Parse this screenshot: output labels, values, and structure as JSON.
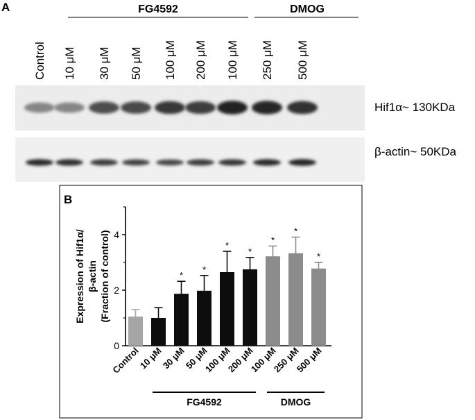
{
  "panel_a": {
    "label": "A",
    "groups": [
      "FG4592",
      "DMOG"
    ],
    "lane_labels": [
      "Control",
      "10 μM",
      "30 μM",
      "50 μM",
      "100 μM",
      "200 μM",
      "100 μM",
      "250 μM",
      "500 μM"
    ],
    "blots": [
      {
        "label": "Hif1α~ 130KDa",
        "band_intensity": [
          0.45,
          0.45,
          0.7,
          0.72,
          0.8,
          0.78,
          0.9,
          0.88,
          0.82
        ]
      },
      {
        "label": "β-actin~ 50KDa",
        "band_intensity": [
          0.85,
          0.82,
          0.78,
          0.75,
          0.72,
          0.78,
          0.8,
          0.85,
          0.88
        ]
      }
    ]
  },
  "panel_b": {
    "label": "B",
    "group_labels": [
      "FG4592",
      "DMOG"
    ]
  },
  "colors": {
    "light_bar": "#a6a6a6",
    "dark_bar": "#0d0d0d",
    "mid_bar": "#8c8c8c"
  },
  "chart_data": {
    "type": "bar",
    "title": "",
    "xlabel": "",
    "ylabel": "Expression of Hif1α/ β-actin (Fraction of control)",
    "ylabel_lines": [
      "Expression of Hif1α/",
      "β-actin",
      "(Fraction of control)"
    ],
    "ylim": [
      0,
      5
    ],
    "yticks": [
      0,
      2,
      4
    ],
    "grid": false,
    "categories": [
      "Control",
      "10 μM",
      "30 μM",
      "50 μM",
      "100 μM",
      "200 μM",
      "100 μM",
      "250 μM",
      "500 μM"
    ],
    "values": [
      1.05,
      1.0,
      1.87,
      1.98,
      2.65,
      2.75,
      3.22,
      3.33,
      2.78
    ],
    "errors": [
      0.25,
      0.37,
      0.45,
      0.55,
      0.75,
      0.43,
      0.37,
      0.58,
      0.22
    ],
    "significant": [
      false,
      false,
      true,
      true,
      true,
      true,
      true,
      true,
      true
    ],
    "significance_marker": "*",
    "bar_colors": [
      "#a6a6a6",
      "#0d0d0d",
      "#0d0d0d",
      "#0d0d0d",
      "#0d0d0d",
      "#0d0d0d",
      "#8c8c8c",
      "#8c8c8c",
      "#8c8c8c"
    ],
    "groups": [
      {
        "label": "FG4592",
        "bars": [
          1,
          5
        ]
      },
      {
        "label": "DMOG",
        "bars": [
          6,
          8
        ]
      }
    ]
  }
}
